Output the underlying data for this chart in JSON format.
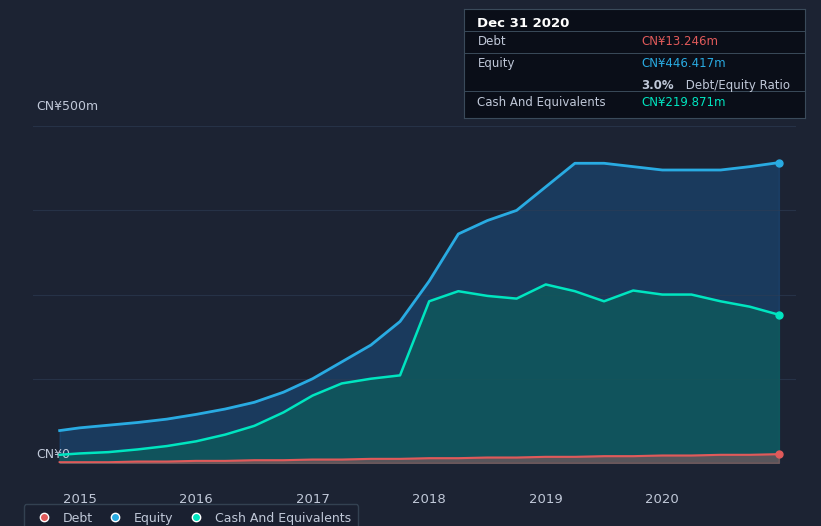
{
  "bg_color": "#1c2333",
  "plot_bg_color": "#1c2333",
  "ylabel_text": "CN¥500m",
  "ylabel0_text": "CN¥0",
  "xlabel_labels": [
    "2015",
    "2016",
    "2017",
    "2018",
    "2019",
    "2020"
  ],
  "years": [
    2014.83,
    2015.0,
    2015.25,
    2015.5,
    2015.75,
    2016.0,
    2016.25,
    2016.5,
    2016.75,
    2017.0,
    2017.25,
    2017.5,
    2017.75,
    2018.0,
    2018.25,
    2018.5,
    2018.75,
    2019.0,
    2019.25,
    2019.5,
    2019.75,
    2020.0,
    2020.25,
    2020.5,
    2020.75,
    2021.0
  ],
  "equity": [
    48,
    52,
    56,
    60,
    65,
    72,
    80,
    90,
    105,
    125,
    150,
    175,
    210,
    270,
    340,
    360,
    375,
    410,
    445,
    445,
    440,
    435,
    435,
    435,
    440,
    446
  ],
  "cash": [
    12,
    14,
    16,
    20,
    25,
    32,
    42,
    55,
    75,
    100,
    118,
    125,
    130,
    240,
    255,
    248,
    244,
    265,
    255,
    240,
    256,
    250,
    250,
    240,
    232,
    220
  ],
  "debt": [
    1,
    1,
    1,
    2,
    2,
    3,
    3,
    4,
    4,
    5,
    5,
    6,
    6,
    7,
    7,
    8,
    8,
    9,
    9,
    10,
    10,
    11,
    11,
    12,
    12,
    13
  ],
  "equity_color": "#29abe2",
  "cash_color": "#00e5c0",
  "debt_color": "#e05a5a",
  "equity_fill": "#1a4a7a",
  "cash_fill": "#0d5c5c",
  "grid_color": "#2e3d55",
  "text_color": "#c0c8d8",
  "legend_bg": "#1a2030",
  "legend_border": "#3a4a5a",
  "tooltip_bg": "#0a0e18",
  "tooltip_title": "Dec 31 2020",
  "tooltip_debt_label": "Debt",
  "tooltip_debt_value": "CN¥13.246m",
  "tooltip_equity_label": "Equity",
  "tooltip_equity_value": "CN¥446.417m",
  "tooltip_ratio_text": "3.0% Debt/Equity Ratio",
  "tooltip_ratio_bold": "3.0%",
  "tooltip_cash_label": "Cash And Equivalents",
  "tooltip_cash_value": "CN¥219.871m",
  "ylim": [
    0,
    500
  ],
  "xlim_left": 2014.6,
  "xlim_right": 2021.15,
  "dot_equity_y": 446,
  "dot_cash_y": 220,
  "dot_debt_y": 13,
  "legend_items": [
    "Debt",
    "Equity",
    "Cash And Equivalents"
  ]
}
